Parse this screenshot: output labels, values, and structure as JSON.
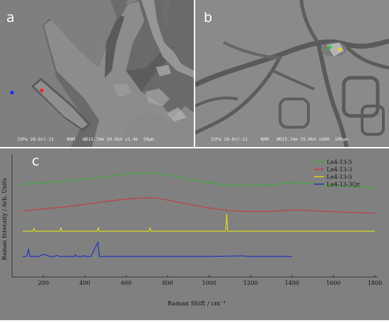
{
  "panels": {
    "a": {
      "letter": "a",
      "micro_bar": "15Pa 28-Oct-21",
      "micro_bar_org": "NHM",
      "micro_bar_params": "WD15.7mm 20.0kV x1.4k",
      "micro_bar_scale": "50µm",
      "colors": {
        "point_blue": "#1a2cff",
        "point_red": "#ff2020"
      }
    },
    "b": {
      "letter": "b",
      "micro_bar": "15Pa 28-Oct-21",
      "micro_bar_org": "NHM",
      "micro_bar_params": "WD15.7mm 25.0kV x600",
      "micro_bar_scale": "100µm",
      "colors": {
        "point_green": "#2fc42f",
        "point_yellow": "#f2d020"
      }
    },
    "c": {
      "letter": "c"
    }
  },
  "chart_data": {
    "type": "line",
    "title": "",
    "xlabel": "Raman Shift / cm⁻¹",
    "ylabel": "Raman Intensity / Arb. Units",
    "xlim": [
      100,
      1800
    ],
    "xticks": [
      200,
      400,
      600,
      800,
      1000,
      1200,
      1400,
      1600,
      1800
    ],
    "yticks": [],
    "legend_position": "top-right",
    "series": [
      {
        "name": "Le4-13-5",
        "color": "#3aa83a",
        "x": [
          100,
          200,
          300,
          400,
          500,
          600,
          700,
          750,
          800,
          900,
          1000,
          1100,
          1200,
          1300,
          1400,
          1430,
          1500,
          1600,
          1700,
          1800
        ],
        "y": [
          0.81,
          0.822,
          0.835,
          0.855,
          0.878,
          0.9,
          0.908,
          0.905,
          0.892,
          0.855,
          0.823,
          0.803,
          0.8,
          0.806,
          0.823,
          0.825,
          0.817,
          0.8,
          0.787,
          0.783
        ]
      },
      {
        "name": "Le4-13-3",
        "color": "#c43a3a",
        "x": [
          100,
          200,
          300,
          400,
          500,
          600,
          700,
          750,
          800,
          900,
          1000,
          1100,
          1200,
          1300,
          1400,
          1430,
          1500,
          1600,
          1700,
          1800
        ],
        "y": [
          0.578,
          0.595,
          0.612,
          0.635,
          0.66,
          0.681,
          0.692,
          0.688,
          0.672,
          0.636,
          0.604,
          0.58,
          0.572,
          0.575,
          0.585,
          0.586,
          0.58,
          0.57,
          0.563,
          0.56
        ]
      },
      {
        "name": "Le4-13-5",
        "color": "#dede1a",
        "x": [
          100,
          150,
          155,
          160,
          250,
          280,
          285,
          290,
          400,
          460,
          465,
          470,
          650,
          710,
          715,
          720,
          900,
          1080,
          1085,
          1090,
          1200,
          1300,
          1420,
          1500,
          1600,
          1800
        ],
        "y": [
          0.4,
          0.4,
          0.425,
          0.4,
          0.4,
          0.4,
          0.43,
          0.4,
          0.4,
          0.4,
          0.43,
          0.4,
          0.4,
          0.4,
          0.43,
          0.4,
          0.4,
          0.4,
          0.55,
          0.4,
          0.4,
          0.4,
          0.4,
          0.4,
          0.4,
          0.4
        ]
      },
      {
        "name": "Le4-13-3Qz",
        "color": "#1a2ec4",
        "x": [
          100,
          120,
          128,
          135,
          180,
          205,
          230,
          255,
          265,
          275,
          350,
          355,
          360,
          390,
          395,
          400,
          430,
          464,
          470,
          480,
          500,
          520,
          600,
          700,
          800,
          1000,
          1160,
          1200,
          1400
        ],
        "y": [
          0.18,
          0.18,
          0.245,
          0.18,
          0.18,
          0.2,
          0.18,
          0.18,
          0.19,
          0.18,
          0.18,
          0.195,
          0.18,
          0.18,
          0.19,
          0.18,
          0.18,
          0.305,
          0.18,
          0.18,
          0.18,
          0.18,
          0.18,
          0.18,
          0.18,
          0.18,
          0.185,
          0.18,
          0.18
        ]
      }
    ]
  }
}
